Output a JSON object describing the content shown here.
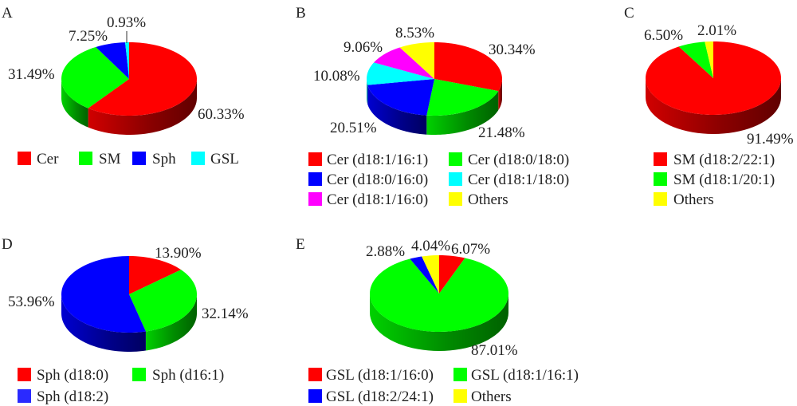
{
  "chart_data": [
    {
      "type": "pie",
      "panel": "A",
      "title": "",
      "categories": [
        "Cer",
        "SM",
        "Sph",
        "GSL"
      ],
      "values": [
        60.33,
        31.49,
        7.25,
        0.93
      ],
      "labels": [
        "60.33%",
        "31.49%",
        "7.25%",
        "0.93%"
      ],
      "colors": [
        "#ff0000",
        "#00ff00",
        "#0000ff",
        "#00ffff"
      ],
      "start": "12 o'clock",
      "direction": "clockwise",
      "legend": {
        "entries": [
          "Cer",
          "SM",
          "Sph",
          "GSL"
        ],
        "placement": "bottom"
      }
    },
    {
      "type": "pie",
      "panel": "B",
      "title": "",
      "categories": [
        "Cer (d18:1/16:1)",
        "Cer (d18:0/18:0)",
        "Cer (d18:0/16:0)",
        "Cer (d18:1/18:0)",
        "Cer (d18:1/16:0)",
        "Others"
      ],
      "values": [
        30.34,
        21.48,
        20.51,
        10.08,
        9.06,
        8.53
      ],
      "labels": [
        "30.34%",
        "21.48%",
        "20.51%",
        "10.08%",
        "9.06%",
        "8.53%"
      ],
      "colors": [
        "#ff0000",
        "#00ff00",
        "#0000ff",
        "#00ffff",
        "#ff00ff",
        "#ffff00"
      ],
      "start": "12 o'clock",
      "direction": "clockwise",
      "legend": {
        "entries": [
          "Cer (d18:1/16:1)",
          "Cer (d18:0/18:0)",
          "Cer (d18:0/16:0)",
          "Cer (d18:1/18:0)",
          "Cer (d18:1/16:0)",
          "Others"
        ],
        "placement": "bottom"
      }
    },
    {
      "type": "pie",
      "panel": "C",
      "title": "",
      "categories": [
        "SM (d18:2/22:1)",
        "SM (d18:1/20:1)",
        "Others"
      ],
      "values": [
        91.49,
        6.5,
        2.01
      ],
      "labels": [
        "91.49%",
        "6.50%",
        "2.01%"
      ],
      "colors": [
        "#ff0000",
        "#00ff00",
        "#ffff00"
      ],
      "start": "12 o'clock",
      "direction": "clockwise",
      "legend": {
        "entries": [
          "SM (d18:2/22:1)",
          "SM (d18:1/20:1)",
          "Others"
        ],
        "placement": "bottom"
      }
    },
    {
      "type": "pie",
      "panel": "D",
      "title": "",
      "categories": [
        "Sph (d18:0)",
        "Sph (d16:1)",
        "Sph (d18:2)"
      ],
      "values": [
        13.9,
        32.14,
        53.96
      ],
      "labels": [
        "13.90%",
        "32.14%",
        "53.96%"
      ],
      "colors": [
        "#ff0000",
        "#00ff00",
        "#0000ff"
      ],
      "start": "12 o'clock",
      "direction": "clockwise",
      "legend": {
        "entries": [
          "Sph (d18:0)",
          "Sph (d16:1)",
          "Sph (d18:2)"
        ],
        "placement": "bottom"
      }
    },
    {
      "type": "pie",
      "panel": "E",
      "title": "",
      "categories": [
        "GSL (d18:1/16:0)",
        "GSL (d18:1/16:1)",
        "GSL (d18:2/24:1)",
        "Others"
      ],
      "values": [
        6.07,
        87.01,
        2.88,
        4.04
      ],
      "labels": [
        "6.07%",
        "87.01%",
        "2.88%",
        "4.04%"
      ],
      "colors": [
        "#ff0000",
        "#00ff00",
        "#0000ff",
        "#ffff00"
      ],
      "start": "12 o'clock",
      "direction": "clockwise",
      "legend": {
        "entries": [
          "GSL (d18:1/16:0)",
          "GSL (d18:1/16:1)",
          "GSL (d18:2/24:1)",
          "Others"
        ],
        "placement": "bottom"
      }
    }
  ]
}
